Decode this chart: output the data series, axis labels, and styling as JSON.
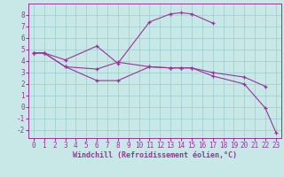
{
  "xlabel": "Windchill (Refroidissement éolien,°C)",
  "background_color": "#c8e8e8",
  "grid_color": "#99cccc",
  "line_color": "#993399",
  "line1_x": [
    0,
    1,
    3,
    6,
    8,
    11,
    13,
    14,
    15,
    17
  ],
  "line1_y": [
    4.7,
    4.7,
    4.1,
    5.3,
    3.8,
    7.4,
    8.1,
    8.2,
    8.1,
    7.3
  ],
  "line2_x": [
    0,
    1,
    3,
    6,
    8,
    11,
    13,
    14,
    15,
    17,
    20,
    22
  ],
  "line2_y": [
    4.7,
    4.7,
    3.5,
    3.3,
    3.9,
    3.5,
    3.4,
    3.4,
    3.4,
    3.0,
    2.6,
    1.8
  ],
  "line3_x": [
    0,
    1,
    3,
    6,
    8,
    11,
    13,
    14,
    15,
    17,
    20,
    22,
    23
  ],
  "line3_y": [
    4.7,
    4.7,
    3.5,
    2.3,
    2.3,
    3.5,
    3.4,
    3.4,
    3.4,
    2.7,
    2.0,
    -0.1,
    -2.2
  ],
  "ylim": [
    -2.7,
    9.0
  ],
  "xlim": [
    -0.5,
    23.5
  ],
  "yticks": [
    -2,
    -1,
    0,
    1,
    2,
    3,
    4,
    5,
    6,
    7,
    8
  ],
  "xticks": [
    0,
    1,
    2,
    3,
    4,
    5,
    6,
    7,
    8,
    9,
    10,
    11,
    12,
    13,
    14,
    15,
    16,
    17,
    18,
    19,
    20,
    21,
    22,
    23
  ],
  "tick_fontsize": 5.5,
  "xlabel_fontsize": 6.0,
  "linewidth": 0.8,
  "markersize": 3.5,
  "markeredgewidth": 0.9
}
